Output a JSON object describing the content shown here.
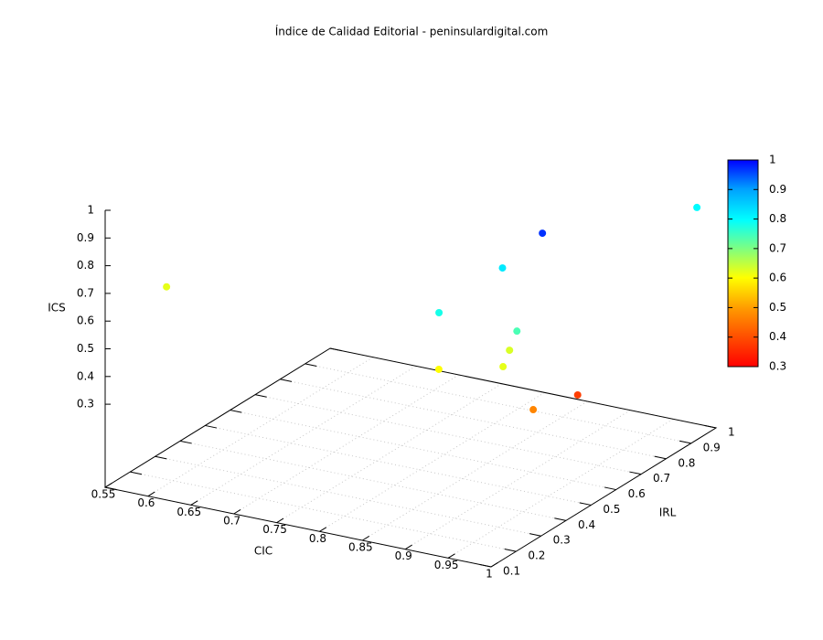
{
  "chart_data": {
    "type": "scatter3d",
    "title": "Índice de Calidad Editorial - peninsulardigital.com",
    "x_label": "CIC",
    "y_label": "IRL",
    "z_label": "ICS",
    "xlim": [
      0.55,
      1
    ],
    "ylim": [
      0.1,
      1
    ],
    "zlim": [
      0,
      1
    ],
    "xticks": [
      0.55,
      0.6,
      0.65,
      0.7,
      0.75,
      0.8,
      0.85,
      0.9,
      0.95,
      1
    ],
    "yticks": [
      0.1,
      0.2,
      0.3,
      0.4,
      0.5,
      0.6,
      0.7,
      0.8,
      0.9,
      1
    ],
    "zticks": [
      0.3,
      0.4,
      0.5,
      0.6,
      0.7,
      0.8,
      0.9,
      1
    ],
    "cblim": [
      0.3,
      1
    ],
    "cbticks": [
      0.3,
      0.4,
      0.5,
      0.6,
      0.7,
      0.8,
      0.9,
      1
    ],
    "grid": true,
    "x": [
      0.614,
      0.985,
      0.906,
      0.881,
      0.83,
      0.885,
      0.886,
      0.884,
      0.812,
      0.95,
      0.932
    ],
    "y": [
      0.126,
      0.975,
      0.628,
      0.554,
      0.475,
      0.598,
      0.565,
      0.546,
      0.536,
      0.618,
      0.502
    ],
    "z": [
      0.75,
      0.8,
      0.85,
      0.75,
      0.6,
      0.5,
      0.45,
      0.4,
      0.35,
      0.3,
      0.3
    ],
    "c": [
      0.62,
      0.8,
      0.97,
      0.82,
      0.78,
      0.74,
      0.63,
      0.62,
      0.6,
      0.38,
      0.47
    ]
  }
}
